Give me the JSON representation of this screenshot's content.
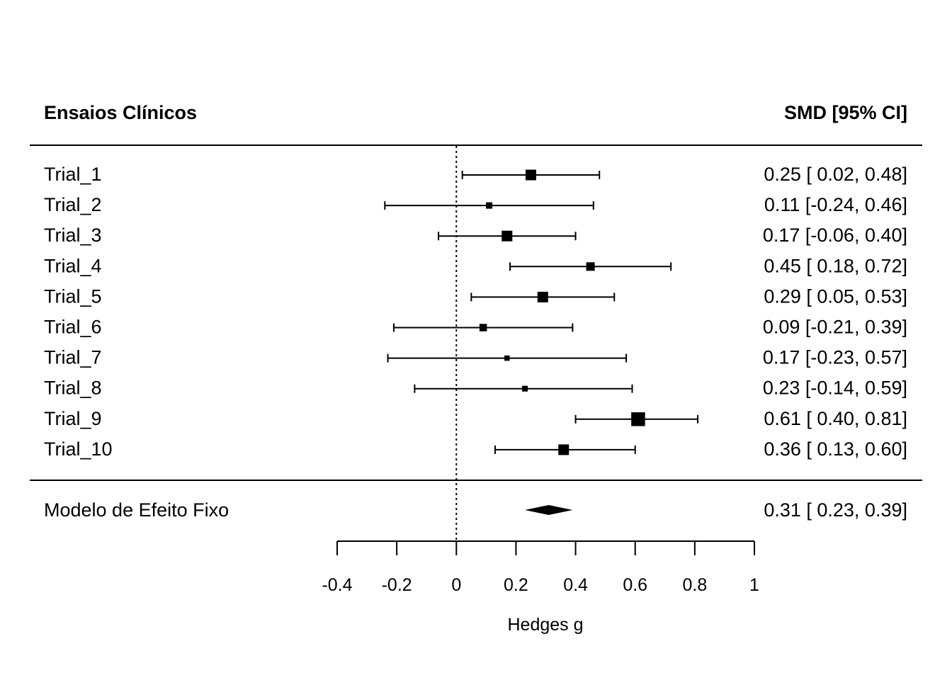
{
  "chart_data": {
    "type": "forest",
    "header": {
      "left": "Ensaios Clínicos",
      "right": "SMD [95% CI]"
    },
    "studies": [
      {
        "label": "Trial_1",
        "est": 0.25,
        "lo": 0.02,
        "hi": 0.48,
        "ci_text": "0.25 [ 0.02, 0.48]",
        "weight": 3
      },
      {
        "label": "Trial_2",
        "est": 0.11,
        "lo": -0.24,
        "hi": 0.46,
        "ci_text": "0.11 [-0.24, 0.46]",
        "weight": 1
      },
      {
        "label": "Trial_3",
        "est": 0.17,
        "lo": -0.06,
        "hi": 0.4,
        "ci_text": "0.17 [-0.06, 0.40]",
        "weight": 3
      },
      {
        "label": "Trial_4",
        "est": 0.45,
        "lo": 0.18,
        "hi": 0.72,
        "ci_text": "0.45 [ 0.18, 0.72]",
        "weight": 2
      },
      {
        "label": "Trial_5",
        "est": 0.29,
        "lo": 0.05,
        "hi": 0.53,
        "ci_text": "0.29 [ 0.05, 0.53]",
        "weight": 3
      },
      {
        "label": "Trial_6",
        "est": 0.09,
        "lo": -0.21,
        "hi": 0.39,
        "ci_text": "0.09 [-0.21, 0.39]",
        "weight": 1.5
      },
      {
        "label": "Trial_7",
        "est": 0.17,
        "lo": -0.23,
        "hi": 0.57,
        "ci_text": "0.17 [-0.23, 0.57]",
        "weight": 0.5
      },
      {
        "label": "Trial_8",
        "est": 0.23,
        "lo": -0.14,
        "hi": 0.59,
        "ci_text": "0.23 [-0.14, 0.59]",
        "weight": 0.7
      },
      {
        "label": "Trial_9",
        "est": 0.61,
        "lo": 0.4,
        "hi": 0.81,
        "ci_text": "0.61 [ 0.40, 0.81]",
        "weight": 4.5
      },
      {
        "label": "Trial_10",
        "est": 0.36,
        "lo": 0.13,
        "hi": 0.6,
        "ci_text": "0.36 [ 0.13, 0.60]",
        "weight": 3
      }
    ],
    "summary": {
      "label": "Modelo de Efeito Fixo",
      "est": 0.31,
      "lo": 0.23,
      "hi": 0.39,
      "ci_text": "0.31 [ 0.23, 0.39]"
    },
    "x_axis": {
      "title": "Hedges g",
      "lim": [
        -0.4,
        1.0
      ],
      "ticks": [
        -0.4,
        -0.2,
        0,
        0.2,
        0.4,
        0.6,
        0.8,
        1
      ],
      "tick_labels": [
        "-0.4",
        "-0.2",
        "0",
        "0.2",
        "0.4",
        "0.6",
        "0.8",
        "1"
      ]
    },
    "reference_line": 0
  }
}
